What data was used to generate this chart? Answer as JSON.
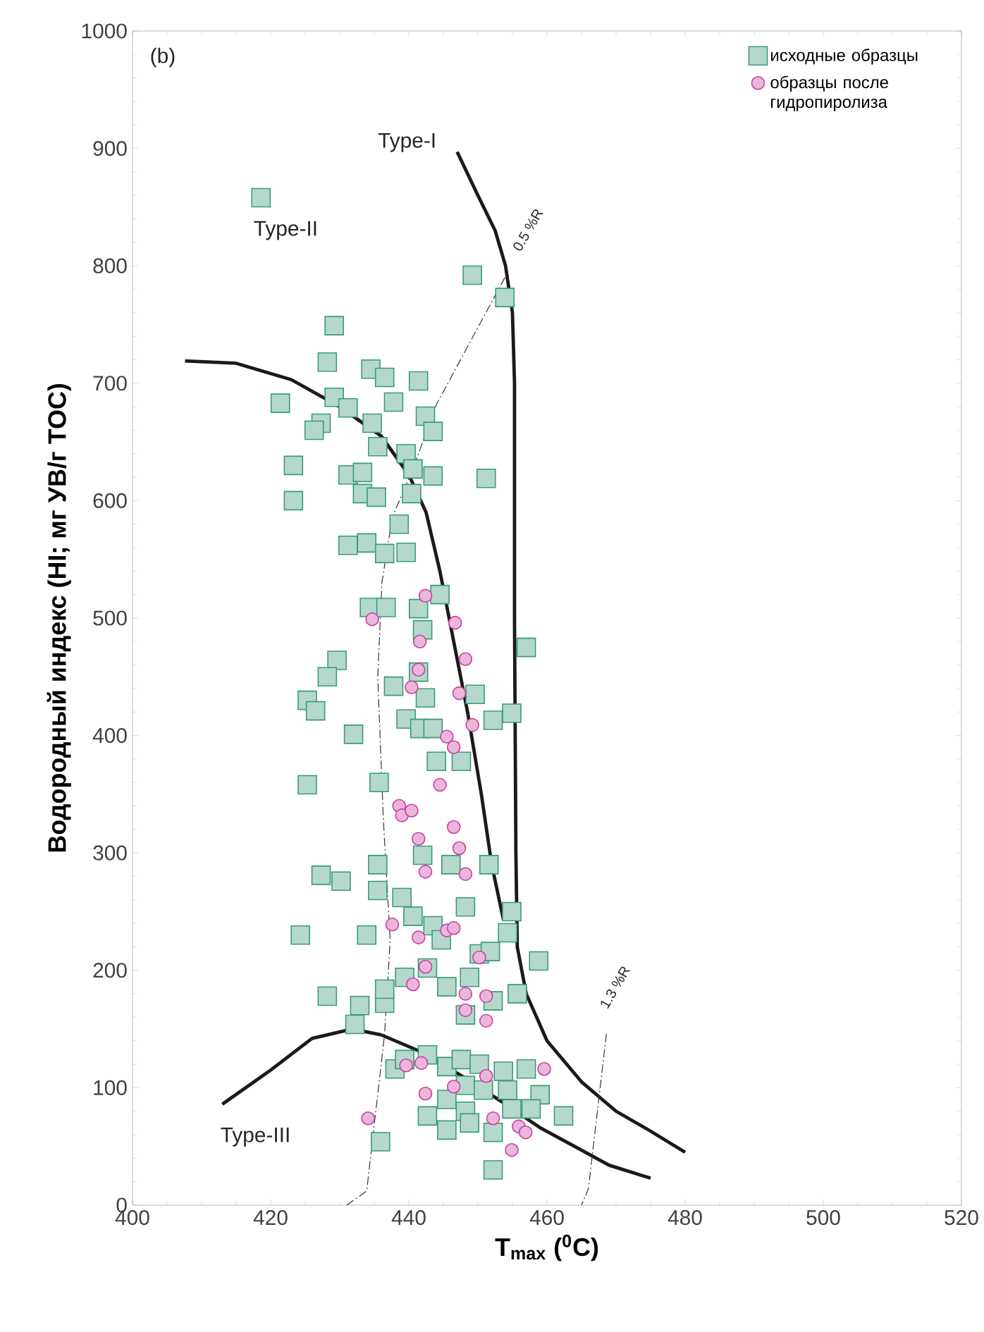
{
  "chart_data": {
    "type": "scatter",
    "xlabel": "T$_{max}$ ($^{0}$C)",
    "ylabel": "Водородный индекс (HI; мг УВ/г TOC)",
    "xlim": [
      400,
      520
    ],
    "xticks": [
      400,
      420,
      440,
      460,
      480,
      500,
      520
    ],
    "ylim": [
      0,
      1000
    ],
    "yticks": [
      0,
      100,
      200,
      300,
      400,
      500,
      600,
      700,
      800,
      900,
      1000
    ],
    "grid": false,
    "legend": "top right",
    "annotations": [
      "(b)",
      "Type-I",
      "Type-II",
      "Type-III",
      "0.5 %R",
      "1.3 %R"
    ],
    "series": [
      {
        "name": "исходные образцы",
        "marker": "square",
        "color": "#3a9a7a",
        "x": [
          418.6,
          429.2,
          428.2,
          421.4,
          429.2,
          431.2,
          427.3,
          426.3,
          423.3,
          423.3,
          434.5,
          436.5,
          441.4,
          437.8,
          434.7,
          442.4,
          443.5,
          435.5,
          439.6,
          431.2,
          433.3,
          440.6,
          443.5,
          433.3,
          435.3,
          440.4,
          438.6,
          431.2,
          433.9,
          436.5,
          439.6,
          449.2,
          453.9,
          451.2,
          434.3,
          436.7,
          441.4,
          444.5,
          442,
          437.8,
          442.4,
          441.4,
          439.6,
          441.6,
          443.5,
          444,
          447.6,
          449.6,
          452.2,
          454.9,
          457,
          429.6,
          428.2,
          425.3,
          426.5,
          432,
          425.3,
          435.7,
          424.3,
          433.9,
          428.2,
          432.9,
          436.5,
          432.2,
          427.3,
          430.2,
          435.5,
          435.5,
          439,
          440.6,
          436.5,
          439.4,
          442.7,
          445.5,
          448.2,
          448.8,
          450.2,
          452.2,
          451.8,
          454.3,
          454.9,
          458.8,
          455.7,
          443.5,
          444.7,
          448.2,
          451.6,
          442,
          446.1,
          438,
          439.4,
          442.7,
          445.5,
          447.6,
          450.2,
          453.7,
          457,
          459,
          462.4,
          442.7,
          445.5,
          448.2,
          445.5,
          448.8,
          452.2,
          452.2,
          454.9,
          457.7,
          435.9,
          454.3,
          448.2,
          450.8
        ],
        "values": [
          858,
          749,
          718,
          683,
          688,
          679,
          666,
          660,
          630,
          600,
          712,
          705,
          702,
          684,
          666,
          672,
          659,
          646,
          640,
          622,
          624,
          627,
          621,
          606,
          603,
          606,
          580,
          562,
          564,
          555,
          556,
          792,
          773,
          619,
          509,
          509,
          508,
          520,
          490,
          442,
          432,
          454,
          414,
          406,
          406,
          378,
          378,
          435,
          413,
          419,
          475,
          464,
          450,
          430,
          421,
          401,
          358,
          360,
          230,
          230,
          178,
          170,
          172,
          154,
          281,
          276,
          268,
          290,
          262,
          246,
          184,
          194,
          202,
          186,
          162,
          194,
          214,
          174,
          216,
          232,
          250,
          208,
          180,
          238,
          226,
          254,
          290,
          298,
          290,
          116,
          124,
          128,
          118,
          124,
          120,
          114,
          116,
          94,
          76,
          76,
          90,
          80,
          64,
          70,
          62,
          30,
          82,
          82,
          54,
          98,
          102,
          98
        ]
      },
      {
        "name": "образцы после гидропиролиза",
        "marker": "circle",
        "color": "#c8409f",
        "x": [
          442.4,
          446.7,
          434.7,
          441.6,
          448.2,
          441.4,
          447.3,
          440.4,
          449.2,
          445.5,
          446.5,
          444.5,
          438.6,
          439,
          440.4,
          446.5,
          441.4,
          447.3,
          448.2,
          442.4,
          437.6,
          441.4,
          445.5,
          446.5,
          442.4,
          440.6,
          450.2,
          448.2,
          451.2,
          448.2,
          451.2,
          439.6,
          441.8,
          451.2,
          459.6,
          442.4,
          446.5,
          452.2,
          455.9,
          456.9,
          454.9,
          434.1
        ],
        "values": [
          519,
          496,
          499,
          480,
          465,
          456,
          436,
          441,
          409,
          399,
          390,
          358,
          340,
          332,
          336,
          322,
          312,
          304,
          282,
          284,
          239,
          228,
          234,
          236,
          203,
          188,
          211,
          180,
          178,
          166,
          157,
          119,
          121,
          110,
          116,
          95,
          101,
          74,
          67,
          62,
          47,
          74
        ]
      },
      {
        "type": "line",
        "color": "#1a1a1a",
        "line_style": "solid",
        "x": [
          447,
          450,
          452.5,
          454,
          455,
          455.3,
          455.3,
          455.5,
          455.7,
          457,
          460,
          465,
          470,
          475,
          480
        ],
        "values": [
          897,
          860,
          830,
          800,
          760,
          700,
          500,
          300,
          220,
          180,
          140,
          105,
          80,
          63,
          45
        ]
      },
      {
        "type": "line",
        "color": "#1a1a1a",
        "line_style": "solid",
        "x": [
          407.6,
          415,
          423,
          430,
          436,
          440,
          442.5,
          444.5,
          446.5,
          448.5,
          450.5,
          452,
          453.7
        ],
        "values": [
          719,
          717,
          703,
          680,
          655,
          622,
          590,
          540,
          480,
          420,
          350,
          290,
          243
        ]
      },
      {
        "type": "line",
        "color": "#1a1a1a",
        "line_style": "solid",
        "x": [
          413,
          420,
          426,
          431.8,
          436,
          442,
          448.8,
          454,
          459,
          464,
          469,
          475
        ],
        "values": [
          86,
          115,
          142,
          150,
          145,
          130,
          106,
          86,
          66,
          50,
          34,
          23
        ]
      },
      {
        "type": "line",
        "color": "#333333",
        "line_style": "dashdot",
        "x": [
          453.9,
          444,
          440.6,
          437.6,
          436.1,
          435.5,
          436.3,
          437.3,
          436.5,
          433.9,
          431
        ],
        "values": [
          790,
          682,
          627,
          586,
          530,
          450,
          330,
          226,
          146,
          12,
          0
        ]
      },
      {
        "type": "line",
        "color": "#333333",
        "line_style": "dashdot",
        "x": [
          468.6,
          466,
          465
        ],
        "values": [
          146,
          14,
          0
        ]
      }
    ]
  }
}
